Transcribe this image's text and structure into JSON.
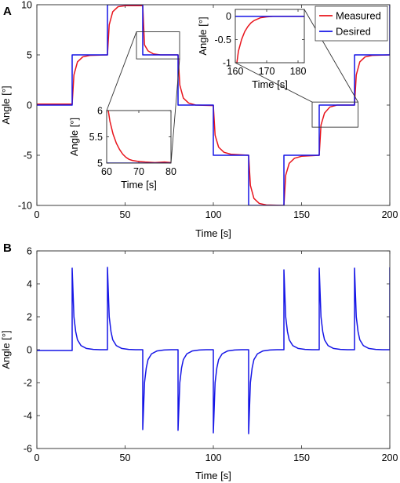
{
  "chart_data": [
    {
      "panel": "A",
      "type": "line",
      "xlabel": "Time [s]",
      "ylabel": "Angle [°]",
      "xlim": [
        0,
        200
      ],
      "ylim": [
        -10,
        10
      ],
      "xticks": [
        0,
        50,
        100,
        150,
        200
      ],
      "yticks": [
        -10,
        -5,
        0,
        5,
        10
      ],
      "legend": "top-right",
      "series": [
        {
          "name": "Measured",
          "color": "#e8141c",
          "x": [
            0,
            20,
            21,
            23,
            26,
            30,
            40,
            41,
            43,
            46,
            50,
            60,
            61,
            63,
            66,
            70,
            80,
            81,
            83,
            86,
            90,
            100,
            101,
            103,
            106,
            110,
            120,
            121,
            123,
            126,
            130,
            140,
            141,
            143,
            146,
            150,
            160,
            161,
            163,
            166,
            170,
            180,
            181,
            183,
            186,
            190,
            200
          ],
          "values": [
            0.1,
            0.1,
            3.0,
            4.3,
            4.8,
            4.95,
            5.0,
            8.0,
            9.3,
            9.8,
            9.9,
            9.9,
            6.0,
            5.4,
            5.1,
            5.0,
            5.0,
            2.0,
            0.7,
            0.2,
            0.0,
            -0.05,
            -3.0,
            -4.2,
            -4.7,
            -4.9,
            -5.0,
            -8.0,
            -9.3,
            -9.8,
            -9.95,
            -10.0,
            -7.0,
            -5.8,
            -5.3,
            -5.1,
            -5.0,
            -2.0,
            -0.8,
            -0.2,
            0.0,
            0.0,
            3.0,
            4.3,
            4.8,
            4.95,
            5.0
          ]
        },
        {
          "name": "Desired",
          "color": "#1515e6",
          "x": [
            0,
            20,
            20,
            40,
            40,
            60,
            60,
            80,
            80,
            100,
            100,
            120,
            120,
            140,
            140,
            160,
            160,
            180,
            180,
            200,
            200
          ],
          "values": [
            0,
            0,
            5,
            5,
            10,
            10,
            5,
            5,
            0,
            0,
            -5,
            -5,
            -10,
            -10,
            -5,
            -5,
            0,
            0,
            5,
            5,
            10
          ]
        }
      ],
      "insets": [
        {
          "position": "lower-left",
          "xlabel": "Time [s]",
          "ylabel": "Angle [°]",
          "xlim": [
            60,
            80
          ],
          "ylim": [
            5,
            6
          ],
          "xticks": [
            60,
            70,
            80
          ],
          "yticks": [
            5,
            5.5,
            6
          ],
          "series": [
            {
              "name": "Measured",
              "color": "#e8141c",
              "x": [
                60.5,
                61,
                62,
                63,
                64,
                65,
                66,
                67,
                68,
                70,
                72,
                75,
                78,
                80
              ],
              "values": [
                6.0,
                5.8,
                5.55,
                5.38,
                5.26,
                5.17,
                5.11,
                5.07,
                5.05,
                5.03,
                5.02,
                5.01,
                5.02,
                5.01
              ]
            },
            {
              "name": "Desired",
              "color": "#1515e6",
              "x": [
                60,
                80
              ],
              "values": [
                5,
                5
              ]
            }
          ]
        },
        {
          "position": "top-center",
          "xlabel": "Time [s]",
          "ylabel": "Angle [°]",
          "xlim": [
            160,
            182
          ],
          "ylim": [
            -1,
            0.15
          ],
          "xticks": [
            160,
            170,
            180
          ],
          "yticks": [
            -1,
            -0.5,
            0
          ],
          "series": [
            {
              "name": "Measured",
              "color": "#e8141c",
              "x": [
                160.5,
                161,
                162,
                163,
                164,
                165,
                166,
                167,
                168,
                170,
                172,
                174,
                176,
                178,
                180,
                182
              ],
              "values": [
                -1.0,
                -0.75,
                -0.5,
                -0.33,
                -0.22,
                -0.14,
                -0.09,
                -0.06,
                -0.03,
                -0.01,
                0.0,
                0.0,
                0.0,
                0.0,
                0.0,
                0.0
              ]
            },
            {
              "name": "Desired",
              "color": "#1515e6",
              "x": [
                160,
                180,
                180,
                182
              ],
              "values": [
                0,
                0,
                0,
                0
              ]
            }
          ]
        }
      ]
    },
    {
      "panel": "B",
      "type": "line",
      "xlabel": "Time [s]",
      "ylabel": "Angle [°]",
      "xlim": [
        0,
        200
      ],
      "ylim": [
        -6,
        6
      ],
      "xticks": [
        0,
        50,
        100,
        150,
        200
      ],
      "yticks": [
        -6,
        -4,
        -2,
        0,
        2,
        4,
        6
      ],
      "series": [
        {
          "name": "",
          "color": "#1515e6",
          "x": [
            0,
            20,
            20,
            21,
            22,
            23,
            25,
            28,
            32,
            36,
            40,
            40,
            41,
            42,
            43,
            45,
            48,
            52,
            56,
            60,
            60,
            61,
            62,
            63,
            65,
            68,
            72,
            76,
            80,
            80,
            81,
            82,
            83,
            85,
            88,
            92,
            96,
            100,
            100,
            101,
            102,
            103,
            105,
            108,
            112,
            116,
            120,
            120,
            121,
            122,
            123,
            125,
            128,
            132,
            136,
            140,
            140,
            141,
            142,
            143,
            145,
            148,
            152,
            156,
            160,
            160,
            161,
            162,
            163,
            165,
            168,
            172,
            176,
            180,
            180,
            181,
            182,
            183,
            185,
            188,
            192,
            196,
            200,
            200
          ],
          "values": [
            -0.05,
            -0.05,
            4.95,
            2.0,
            1.1,
            0.6,
            0.25,
            0.08,
            0.02,
            0.0,
            0.0,
            5.0,
            2.0,
            1.1,
            0.6,
            0.25,
            0.08,
            0.02,
            0.0,
            0.0,
            -4.85,
            -2.0,
            -1.1,
            -0.6,
            -0.25,
            -0.08,
            -0.02,
            0.0,
            0.0,
            -4.9,
            -2.0,
            -1.1,
            -0.6,
            -0.25,
            -0.08,
            -0.02,
            0.0,
            0.0,
            -5.05,
            -2.0,
            -1.1,
            -0.6,
            -0.25,
            -0.08,
            -0.02,
            0.0,
            0.0,
            -5.1,
            -2.0,
            -1.1,
            -0.6,
            -0.25,
            -0.08,
            -0.02,
            0.0,
            0.0,
            4.85,
            2.0,
            1.1,
            0.6,
            0.25,
            0.08,
            0.02,
            0.0,
            0.0,
            4.95,
            2.0,
            1.1,
            0.6,
            0.25,
            0.08,
            0.02,
            0.0,
            0.0,
            4.95,
            2.0,
            1.1,
            0.6,
            0.25,
            0.08,
            0.02,
            0.0,
            0.0,
            5.0
          ]
        }
      ]
    }
  ]
}
